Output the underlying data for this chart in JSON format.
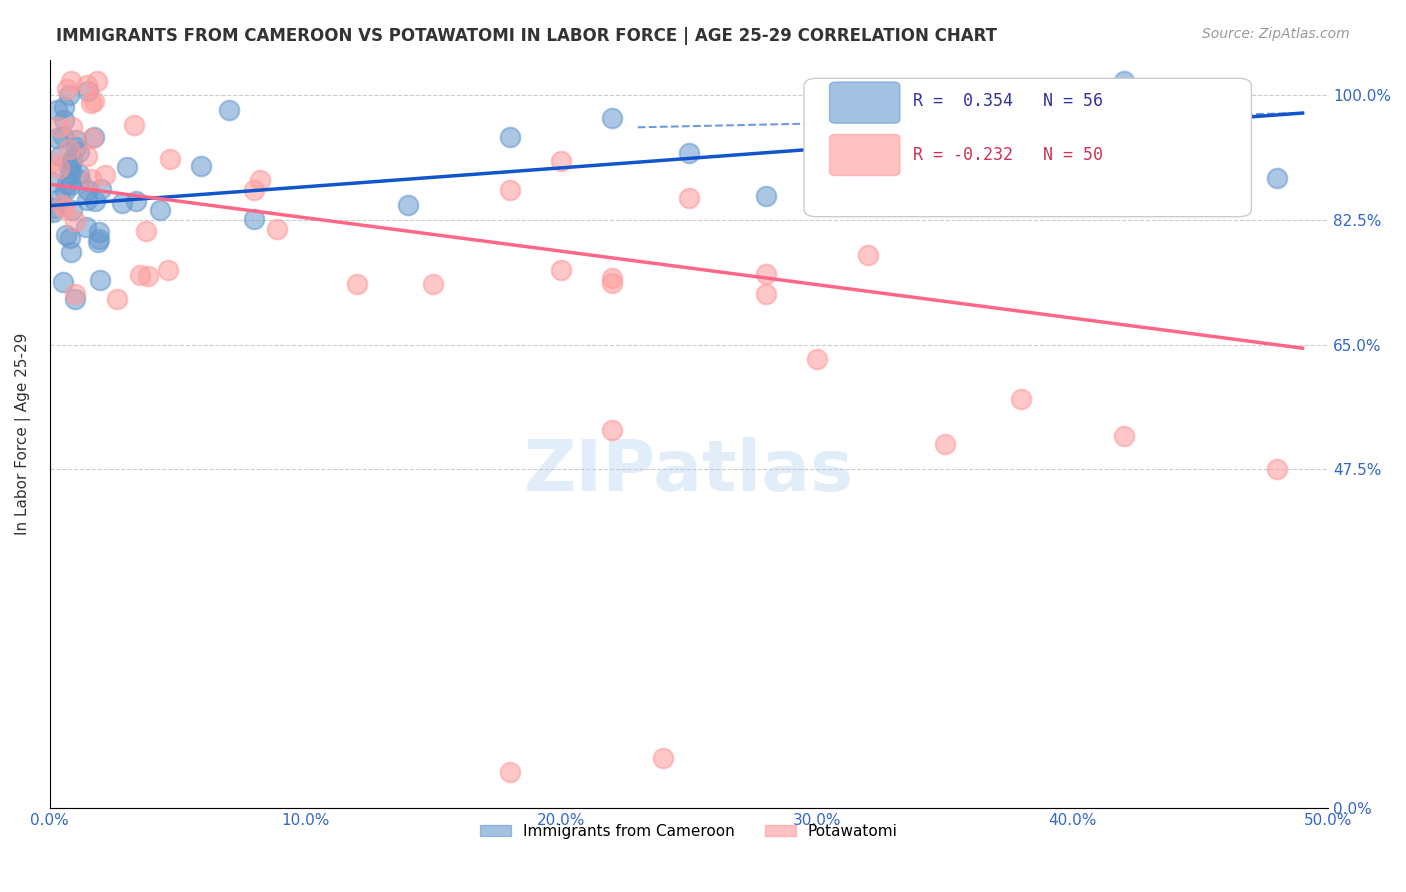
{
  "title": "IMMIGRANTS FROM CAMEROON VS POTAWATOMI IN LABOR FORCE | AGE 25-29 CORRELATION CHART",
  "source": "Source: ZipAtlas.com",
  "ylabel": "In Labor Force | Age 25-29",
  "ytick_labels": [
    "0.0%",
    "47.5%",
    "65.0%",
    "82.5%",
    "100.0%"
  ],
  "ytick_values": [
    0.0,
    0.475,
    0.65,
    0.825,
    1.0
  ],
  "xmin": 0.0,
  "xmax": 0.5,
  "ymin": 0.0,
  "ymax": 1.05,
  "r_blue": 0.354,
  "n_blue": 56,
  "r_pink": -0.232,
  "n_pink": 50,
  "blue_color": "#6699CC",
  "pink_color": "#FF9999",
  "blue_line_color": "#1155CC",
  "pink_line_color": "#FF6688",
  "watermark": "ZIPatlas",
  "legend_label_blue": "Immigrants from Cameroon",
  "legend_label_pink": "Potawatomi",
  "blue_trend_x": [
    0.0,
    0.49
  ],
  "blue_trend_y": [
    0.845,
    0.975
  ],
  "pink_trend_x": [
    0.0,
    0.49
  ],
  "pink_trend_y": [
    0.875,
    0.645
  ]
}
